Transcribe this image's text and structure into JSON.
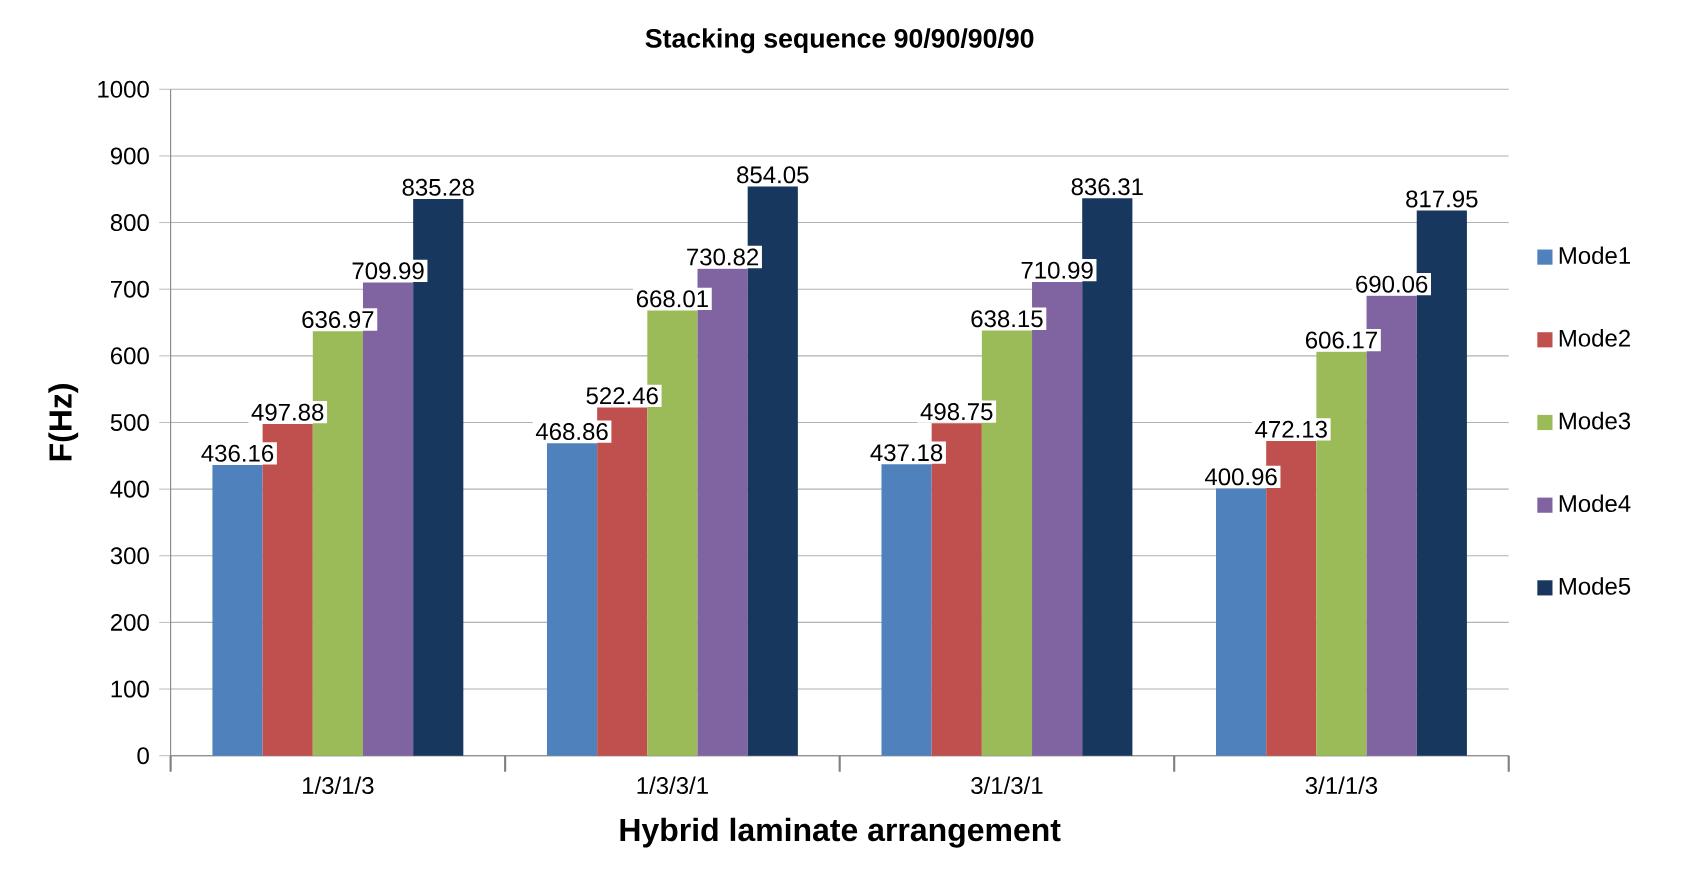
{
  "chart_data": {
    "type": "bar",
    "title": "Stacking sequence 90/90/90/90",
    "xlabel": "Hybrid laminate arrangement",
    "ylabel": "F(Hz)",
    "categories": [
      "1/3/1/3",
      "1/3/3/1",
      "3/1/3/1",
      "3/1/1/3"
    ],
    "series": [
      {
        "name": "Mode1",
        "color": "#4f81bd",
        "values": [
          436.16,
          468.86,
          437.18,
          400.96
        ]
      },
      {
        "name": "Mode2",
        "color": "#c0504d",
        "values": [
          497.88,
          522.46,
          498.75,
          472.13
        ]
      },
      {
        "name": "Mode3",
        "color": "#9bbb59",
        "values": [
          636.97,
          668.01,
          638.15,
          606.17
        ]
      },
      {
        "name": "Mode4",
        "color": "#8064a2",
        "values": [
          709.99,
          730.82,
          710.99,
          690.06
        ]
      },
      {
        "name": "Mode5",
        "color": "#17375e",
        "values": [
          835.28,
          854.05,
          836.31,
          817.95
        ]
      }
    ],
    "ylim": [
      0,
      1000
    ],
    "yticks": [
      0,
      100,
      200,
      300,
      400,
      500,
      600,
      700,
      800,
      900,
      1000
    ],
    "grid": "y",
    "legend": "right",
    "data_labels": true
  }
}
